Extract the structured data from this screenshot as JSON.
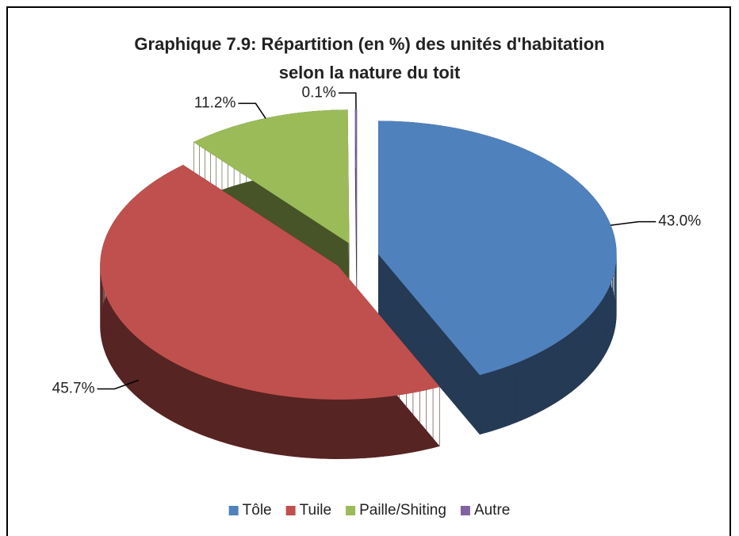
{
  "chart_data": {
    "type": "pie3d",
    "title": "Graphique 7.9: Répartition (en %) des unités d'habitation selon la nature du toit",
    "categories": [
      "Tôle",
      "Tuile",
      "Paille/Shiting",
      "Autre"
    ],
    "values": [
      43.0,
      45.7,
      11.2,
      0.1
    ],
    "value_labels": [
      "43.0%",
      "45.7%",
      "11.2%",
      "0.1%"
    ],
    "colors": [
      "#4f81bd",
      "#c0504d",
      "#9bbb59",
      "#8064a2"
    ],
    "legend": "bottom"
  }
}
